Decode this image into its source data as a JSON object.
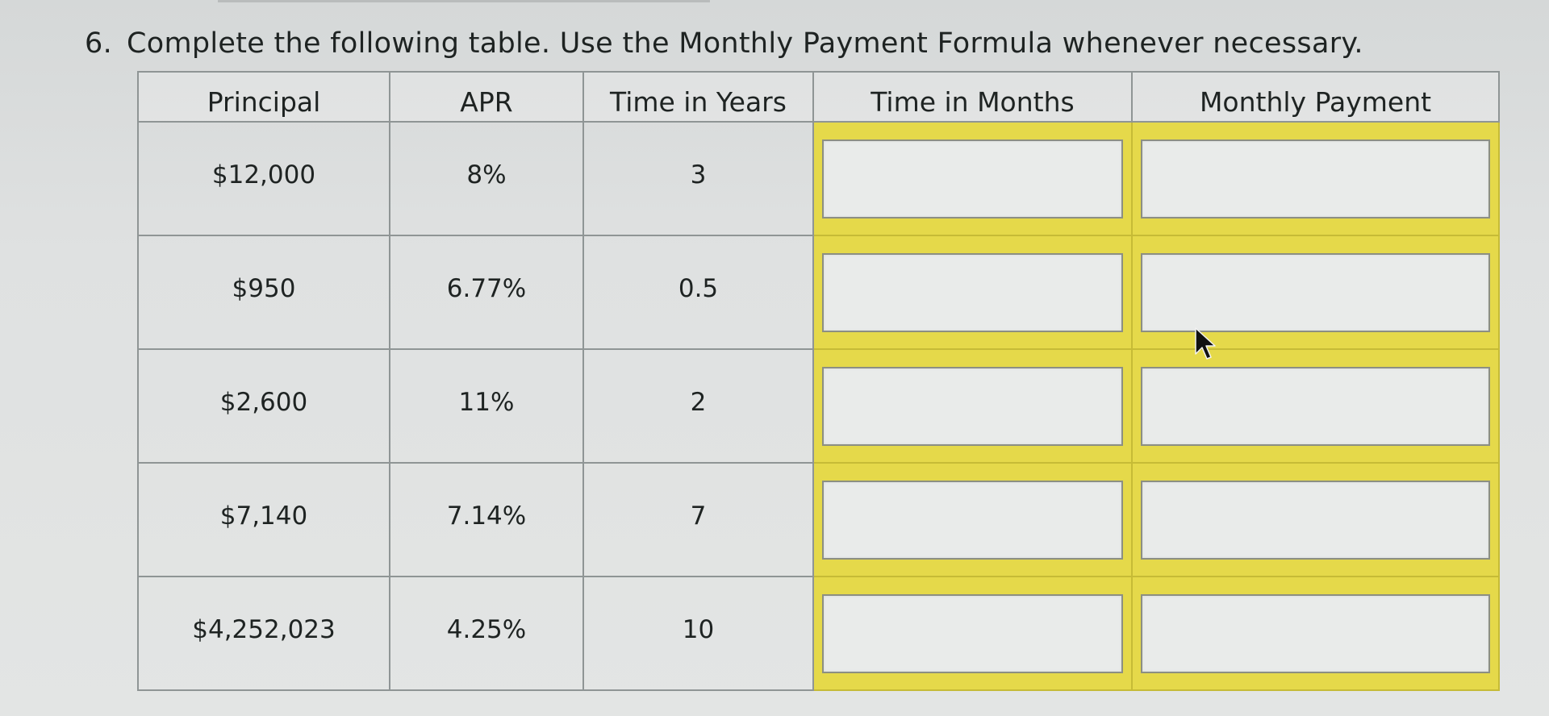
{
  "question": {
    "number": "6.",
    "text": "Complete the following table. Use the Monthly Payment Formula whenever necessary."
  },
  "table": {
    "headers": [
      "Principal",
      "APR",
      "Time in Years",
      "Time in Months",
      "Monthly Payment"
    ],
    "rows": [
      {
        "principal": "$12,000",
        "apr": "8%",
        "years": "3",
        "months": "",
        "payment": ""
      },
      {
        "principal": "$950",
        "apr": "6.77%",
        "years": "0.5",
        "months": "",
        "payment": ""
      },
      {
        "principal": "$2,600",
        "apr": "11%",
        "years": "2",
        "months": "",
        "payment": ""
      },
      {
        "principal": "$7,140",
        "apr": "7.14%",
        "years": "7",
        "months": "",
        "payment": ""
      },
      {
        "principal": "$4,252,023",
        "apr": "4.25%",
        "years": "10",
        "months": "",
        "payment": ""
      }
    ]
  },
  "colors": {
    "answer_highlight": "#e5d94a",
    "grid_line": "#8f9595"
  },
  "icons": {
    "pointer": "mouse-pointer-icon"
  }
}
